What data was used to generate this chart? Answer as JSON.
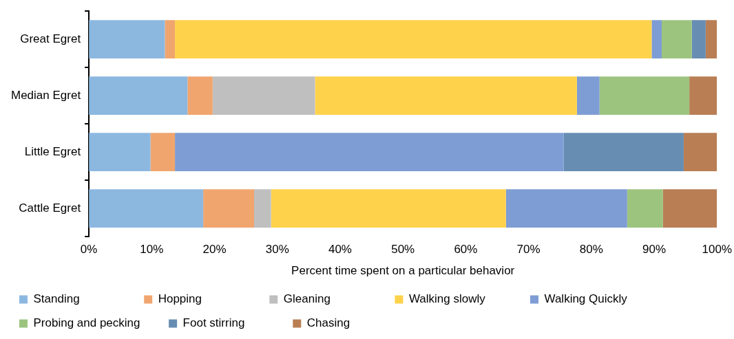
{
  "chart_data": {
    "type": "bar",
    "orientation": "horizontal",
    "stacked": true,
    "xlabel": "Percent time spent on a particular behavior",
    "categories": [
      "Great Egret",
      "Median Egret",
      "Little Egret",
      "Cattle Egret"
    ],
    "series": [
      {
        "name": "Standing",
        "color": "#8cb8e0",
        "values": [
          12.1,
          15.7,
          9.8,
          18.2
        ]
      },
      {
        "name": "Hopping",
        "color": "#f0a56f",
        "values": [
          1.6,
          4.0,
          3.9,
          8.1
        ]
      },
      {
        "name": "Gleaning",
        "color": "#bfbfbf",
        "values": [
          0,
          16.3,
          0,
          2.7
        ]
      },
      {
        "name": "Walking slowly",
        "color": "#ffd24c",
        "values": [
          75.9,
          41.7,
          0,
          37.4
        ]
      },
      {
        "name": "Walking Quickly",
        "color": "#7e9dd4",
        "values": [
          1.6,
          3.6,
          61.9,
          19.3
        ]
      },
      {
        "name": "Probing and pecking",
        "color": "#9dc47f",
        "values": [
          4.8,
          14.3,
          0,
          5.7
        ]
      },
      {
        "name": "Foot stirring",
        "color": "#678db2",
        "values": [
          2.2,
          0,
          19.1,
          0
        ]
      },
      {
        "name": "Chasing",
        "color": "#b97e54",
        "values": [
          1.8,
          4.4,
          5.3,
          8.6
        ]
      }
    ],
    "xlim": [
      0,
      100
    ],
    "xticks": [
      {
        "value": 0,
        "label": "0%"
      },
      {
        "value": 10,
        "label": "10%"
      },
      {
        "value": 20,
        "label": "20%"
      },
      {
        "value": 30,
        "label": "30%"
      },
      {
        "value": 40,
        "label": "40%"
      },
      {
        "value": 50,
        "label": "50%"
      },
      {
        "value": 60,
        "label": "60%"
      },
      {
        "value": 70,
        "label": "70%"
      },
      {
        "value": 80,
        "label": "80%"
      },
      {
        "value": 90,
        "label": "90%"
      },
      {
        "value": 100,
        "label": "100%"
      }
    ],
    "grid": false,
    "legend": "bottom"
  }
}
